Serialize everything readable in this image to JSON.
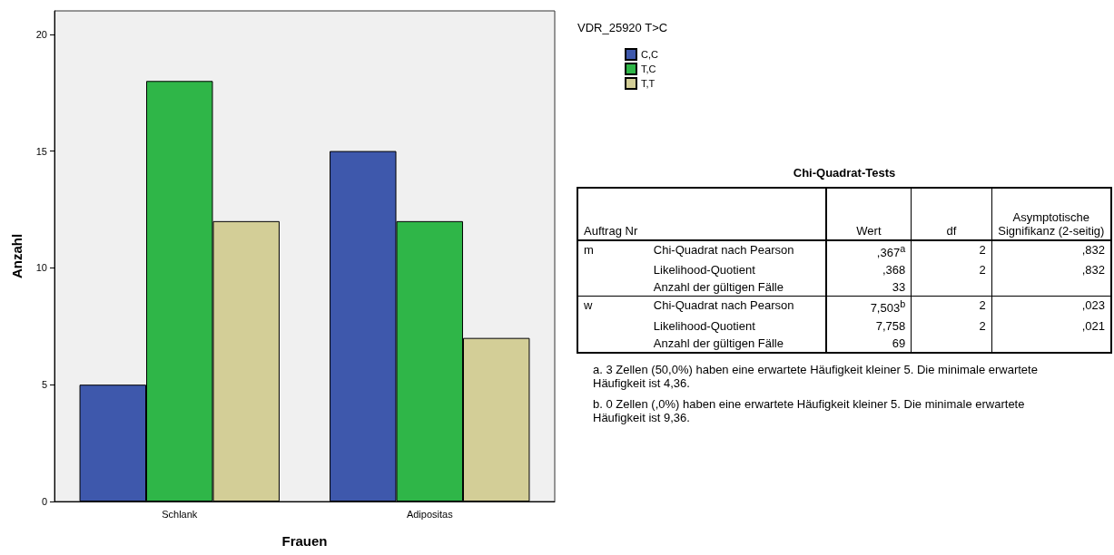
{
  "chart_data": [
    {
      "type": "bar",
      "xlabel": "Frauen",
      "ylabel": "Anzahl",
      "legend_title": "VDR_25920 T>C",
      "categories": [
        "Schlank",
        "Adipositas"
      ],
      "series": [
        {
          "name": "C,C",
          "color": "#3e58ac",
          "values": [
            5,
            15
          ]
        },
        {
          "name": "T,C",
          "color": "#2fb648",
          "values": [
            18,
            12
          ]
        },
        {
          "name": "T,T",
          "color": "#d3ce97",
          "values": [
            12,
            7
          ]
        }
      ],
      "ylim": [
        0,
        21
      ],
      "yticks": [
        0,
        5,
        10,
        15,
        20
      ],
      "grid": false,
      "legend": "top right"
    },
    {
      "type": "other",
      "title": "Chi-Quadrat-Tests",
      "annotations": [
        "Auftrag Nr",
        "Wert",
        "df",
        "Asymptotische Signifikanz (2-seitig)",
        "m",
        "Chi-Quadrat nach Pearson",
        ",367$^{a}$",
        "2",
        ",832",
        "Likelihood-Quotient",
        ",368",
        "2",
        ",832",
        "Anzahl der gültigen Fälle",
        "33",
        "w",
        "Chi-Quadrat nach Pearson",
        "7,503$^{b}$",
        "2",
        ",023",
        "Likelihood-Quotient",
        "7,758",
        "2",
        ",021",
        "Anzahl der gültigen Fälle",
        "69",
        "a. 3 Zellen (50,0%) haben eine erwartete Häufigkeit kleiner 5. Die minimale erwartete Häufigkeit ist 4,36.",
        "b. 0 Zellen (,0%) haben eine erwartete Häufigkeit kleiner 5. Die minimale erwartete Häufigkeit ist 9,36."
      ]
    }
  ]
}
